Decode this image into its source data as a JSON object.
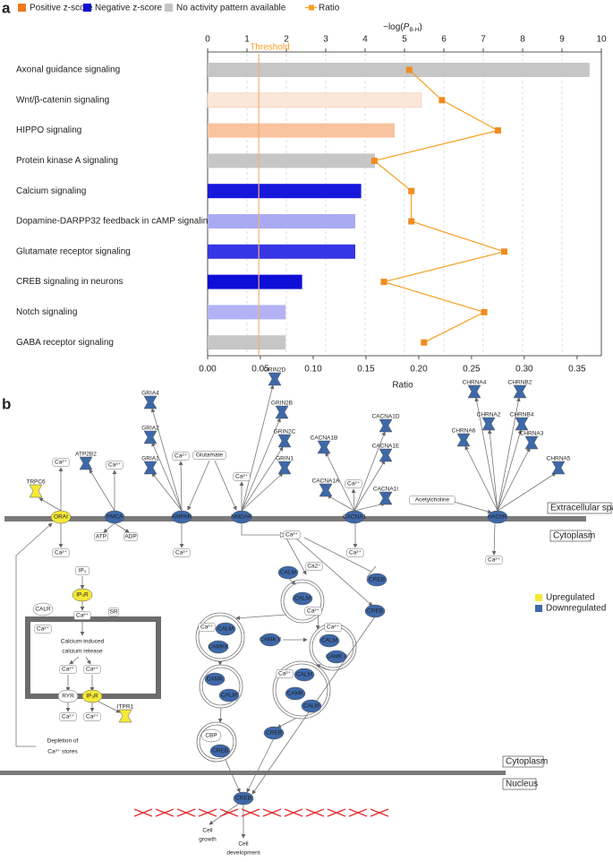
{
  "chart_data": {
    "type": "bar",
    "panel_label": "a",
    "legend": [
      {
        "name": "Positive z-score",
        "color": "#ee7a1e"
      },
      {
        "name": "Negative z-score",
        "color": "#1010d0"
      },
      {
        "name": "No activity pattern available",
        "color": "#c4c4c4"
      },
      {
        "name": "Ratio",
        "color": "#f5a025"
      }
    ],
    "x_top_label": [
      "−log(",
      "P",
      "B-H",
      ")"
    ],
    "x_label": "Ratio",
    "categories": [
      "Axonal guidance signaling",
      "Wnt/β-catenin signaling",
      "HIPPO signaling",
      "Protein kinase A signaling",
      "Calcium signaling",
      "Dopamine-DARPP32 feedback in cAMP signaling",
      "Glutamate receptor signaling",
      "CREB signaling in neurons",
      "Notch signaling",
      "GABA receptor signaling"
    ],
    "values": [
      9.7,
      5.43,
      4.75,
      4.25,
      3.9,
      3.75,
      3.75,
      2.4,
      1.98,
      1.98
    ],
    "colors": [
      "#c6c6c6",
      "#fbe7da",
      "#f8c39e",
      "#c6c6c6",
      "#1818dc",
      "#aaaaf2",
      "#3636e4",
      "#0e0ed6",
      "#b2b2f5",
      "#c6c6c6"
    ],
    "ratio": {
      "name": "Ratio",
      "color": "#f5a025",
      "values": [
        0.191,
        0.222,
        0.275,
        0.158,
        0.193,
        0.193,
        0.281,
        0.167,
        0.262,
        0.205
      ]
    },
    "xlim": [
      0,
      10
    ],
    "xticks": [
      0,
      1,
      2,
      3,
      4,
      5,
      6,
      7,
      8,
      9,
      10
    ],
    "x2lim": [
      0,
      0.373
    ],
    "x2ticks": [
      {
        "value": 0,
        "label": "0.00"
      },
      {
        "value": 0.05,
        "label": "0.05"
      },
      {
        "value": 0.1,
        "label": "0.10"
      },
      {
        "value": 0.15,
        "label": "0.15"
      },
      {
        "value": 0.2,
        "label": "0.20"
      },
      {
        "value": 0.25,
        "label": "0.25"
      },
      {
        "value": 0.3,
        "label": "0.30"
      },
      {
        "value": 0.35,
        "label": "0.35"
      }
    ],
    "threshold": {
      "value": 1.3,
      "label": "Threshold"
    },
    "grid": true
  },
  "diagram": {
    "panel_label": "b",
    "compartments": [
      "Extracellular space",
      "Cytoplasm",
      "Cytoplasm",
      "Nucleus"
    ],
    "legend": [
      {
        "name": "Upregulated",
        "color": "#f4e838"
      },
      {
        "name": "Downregulated",
        "color": "#3e68a8"
      }
    ],
    "nodes": [
      {
        "label": "TRPC6",
        "state": "up"
      },
      {
        "label": "Ca²⁺",
        "state": "none"
      },
      {
        "label": "ORAI",
        "state": "up"
      },
      {
        "label": "Ca²⁺",
        "state": "none"
      },
      {
        "label": "ATP2B2",
        "state": "down"
      },
      {
        "label": "Ca²⁺",
        "state": "none"
      },
      {
        "label": "PMCA",
        "state": "down"
      },
      {
        "label": "ATP",
        "state": "none"
      },
      {
        "label": "ADP",
        "state": "none"
      },
      {
        "label": "GRIA4",
        "state": "down"
      },
      {
        "label": "GRIA2",
        "state": "down"
      },
      {
        "label": "GRIA1",
        "state": "down"
      },
      {
        "label": "Ca²⁺",
        "state": "none"
      },
      {
        "label": "AMPAR",
        "state": "down"
      },
      {
        "label": "Ca²⁺",
        "state": "none"
      },
      {
        "label": "Glutamate",
        "state": "none"
      },
      {
        "label": "Ca²⁺",
        "state": "none"
      },
      {
        "label": "NMDAR",
        "state": "down"
      },
      {
        "label": "GRIN2D",
        "state": "down"
      },
      {
        "label": "GRIN2B",
        "state": "down"
      },
      {
        "label": "GRIN2C",
        "state": "down"
      },
      {
        "label": "GRIN1",
        "state": "down"
      },
      {
        "label": "CACNA1D",
        "state": "down"
      },
      {
        "label": "CACNA1B",
        "state": "down"
      },
      {
        "label": "CACNA1E",
        "state": "down"
      },
      {
        "label": "Ca²⁺",
        "state": "none"
      },
      {
        "label": "CACNA1A",
        "state": "down"
      },
      {
        "label": "CACNA1I",
        "state": "down"
      },
      {
        "label": "CACNA1",
        "state": "down"
      },
      {
        "label": "Ca²⁺",
        "state": "none"
      },
      {
        "label": "Acetylcholine",
        "state": "none"
      },
      {
        "label": "CHRNA4",
        "state": "down"
      },
      {
        "label": "CHRNB2",
        "state": "down"
      },
      {
        "label": "CHRNA2",
        "state": "down"
      },
      {
        "label": "CHRNB4",
        "state": "down"
      },
      {
        "label": "CHRNA6",
        "state": "down"
      },
      {
        "label": "CHRNA3",
        "state": "down"
      },
      {
        "label": "CHRNA5",
        "state": "down"
      },
      {
        "label": "nAChR",
        "state": "down"
      },
      {
        "label": "Ca²⁺",
        "state": "none"
      },
      {
        "label": "Ca²⁺",
        "state": "none"
      },
      {
        "label": "IP₃",
        "state": "none"
      },
      {
        "label": "IP₃R",
        "state": "up"
      },
      {
        "label": "CALR",
        "state": "none"
      },
      {
        "label": "Ca²⁺",
        "state": "none"
      },
      {
        "label": "SR",
        "state": "none"
      },
      {
        "label": "Ca²⁺",
        "state": "none"
      },
      {
        "label": "Calcium-induced",
        "state": "none"
      },
      {
        "label": "calcium release",
        "state": "none"
      },
      {
        "label": "Ca²⁺",
        "state": "none"
      },
      {
        "label": "Ca²⁺",
        "state": "none"
      },
      {
        "label": "RYR",
        "state": "none"
      },
      {
        "label": "IP₃R",
        "state": "up"
      },
      {
        "label": "Ca²⁺",
        "state": "none"
      },
      {
        "label": "Ca²⁺",
        "state": "none"
      },
      {
        "label": "ITPR1",
        "state": "up"
      },
      {
        "label": "Depletion of",
        "state": "none"
      },
      {
        "label": "Ca²⁺ stores",
        "state": "none"
      },
      {
        "label": "CALM",
        "state": "down"
      },
      {
        "label": "Ca2⁺",
        "state": "none"
      },
      {
        "label": "CALM",
        "state": "down"
      },
      {
        "label": "Ca²⁺",
        "state": "none"
      },
      {
        "label": "CREB",
        "state": "down"
      },
      {
        "label": "CREB",
        "state": "down"
      },
      {
        "label": "Ca²⁺",
        "state": "none"
      },
      {
        "label": "CALM",
        "state": "down"
      },
      {
        "label": "CAMKK",
        "state": "down"
      },
      {
        "label": "CAMK II",
        "state": "down"
      },
      {
        "label": "Ca²⁺",
        "state": "none"
      },
      {
        "label": "CALM",
        "state": "down"
      },
      {
        "label": "CAMK II",
        "state": "down"
      },
      {
        "label": "Ca²⁺",
        "state": "none"
      },
      {
        "label": "CALM",
        "state": "down"
      },
      {
        "label": "CAMK",
        "state": "down"
      },
      {
        "label": "CALM",
        "state": "down"
      },
      {
        "label": "CAMK",
        "state": "down"
      },
      {
        "label": "CALM",
        "state": "down"
      },
      {
        "label": "CBP",
        "state": "none"
      },
      {
        "label": "CREB",
        "state": "down"
      },
      {
        "label": "CREB",
        "state": "down"
      },
      {
        "label": "CREB",
        "state": "down"
      },
      {
        "label": "Cell",
        "state": "none"
      },
      {
        "label": "growth",
        "state": "none"
      },
      {
        "label": "Cell",
        "state": "none"
      },
      {
        "label": "development",
        "state": "none"
      }
    ]
  }
}
